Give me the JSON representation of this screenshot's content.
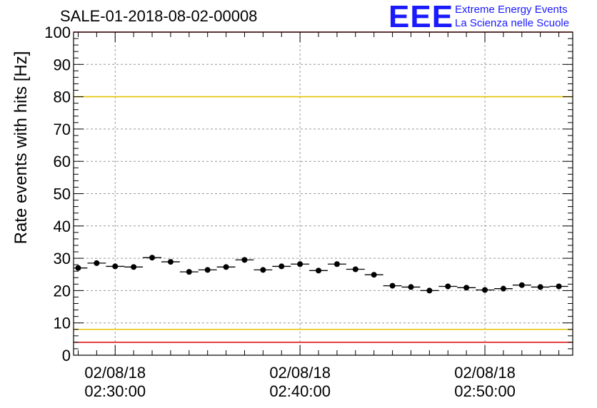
{
  "title": "SALE-01-2018-08-02-00008",
  "logo": {
    "mark": "EEE",
    "line1": "Extreme Energy Events",
    "line2": "La Scienza nelle Scuole"
  },
  "chart_data": {
    "type": "scatter",
    "ylabel": "Rate events with hits [Hz]",
    "ylim": [
      0,
      100
    ],
    "yticks": [
      0,
      10,
      20,
      30,
      40,
      50,
      60,
      70,
      80,
      90,
      100
    ],
    "ytick_labels": [
      "0",
      "10",
      "20",
      "30",
      "40",
      "50",
      "60",
      "70",
      "80",
      "90",
      "100"
    ],
    "xlim": [
      "02:27:45",
      "02:54:45"
    ],
    "xticks": [
      {
        "time": "02:30:00",
        "label_date": "02/08/18",
        "label_time": "02:30:00"
      },
      {
        "time": "02:40:00",
        "label_date": "02/08/18",
        "label_time": "02:40:00"
      },
      {
        "time": "02:50:00",
        "label_date": "02/08/18",
        "label_time": "02:50:00"
      }
    ],
    "grid": true,
    "reference_lines": [
      {
        "y": 80,
        "color": "#e6c400"
      },
      {
        "y": 8,
        "color": "#e6c400"
      },
      {
        "y": 100,
        "color": "#e00000"
      },
      {
        "y": 4,
        "color": "#e00000"
      }
    ],
    "marker_color": "#000000",
    "series": [
      {
        "x": [
          "02:28:00",
          "02:29:00",
          "02:30:00",
          "02:31:00",
          "02:32:00",
          "02:33:00",
          "02:34:00",
          "02:35:00",
          "02:36:00",
          "02:37:00",
          "02:38:00",
          "02:39:00",
          "02:40:00",
          "02:41:00",
          "02:42:00",
          "02:43:00",
          "02:44:00",
          "02:45:00",
          "02:46:00",
          "02:47:00",
          "02:48:00",
          "02:49:00",
          "02:50:00",
          "02:51:00",
          "02:52:00",
          "02:53:00",
          "02:54:00"
        ],
        "values": [
          27.0,
          28.5,
          27.5,
          27.3,
          30.2,
          28.9,
          25.8,
          26.4,
          27.3,
          29.5,
          26.4,
          27.5,
          28.2,
          26.2,
          28.2,
          26.6,
          24.9,
          21.5,
          21.1,
          20.0,
          21.3,
          20.9,
          20.2,
          20.6,
          21.7,
          21.1,
          21.3
        ]
      }
    ]
  }
}
